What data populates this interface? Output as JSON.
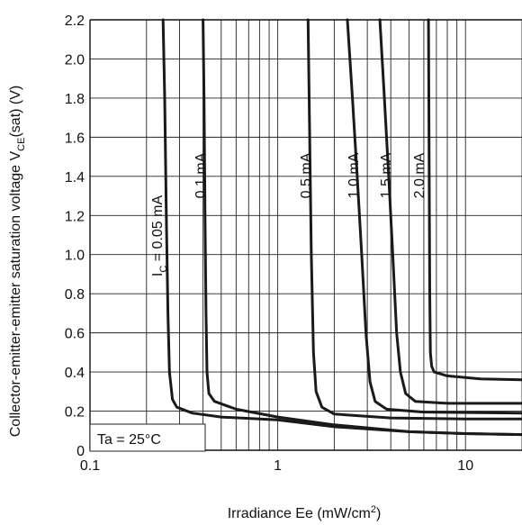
{
  "chart_data": {
    "type": "line",
    "xlabel": "Irradiance Ee (mW/cm",
    "xlabel_sup": "2",
    "xlabel_tail": ")",
    "ylabel": "Collector-emitter-emitter saturation voltage V",
    "ylabel_sub": "CE",
    "ylabel_tail": "(sat) (V)",
    "x_scale": "log",
    "xlim": [
      0.1,
      20
    ],
    "ylim": [
      0,
      2.2
    ],
    "grid": true,
    "x_ticks": [
      {
        "value": 0.1,
        "label": "0.1"
      },
      {
        "value": 1,
        "label": "1"
      },
      {
        "value": 10,
        "label": "10"
      }
    ],
    "y_ticks": [
      {
        "value": 0,
        "label": "0"
      },
      {
        "value": 0.2,
        "label": "0.2"
      },
      {
        "value": 0.4,
        "label": "0.4"
      },
      {
        "value": 0.6,
        "label": "0.6"
      },
      {
        "value": 0.8,
        "label": "0.8"
      },
      {
        "value": 1.0,
        "label": "1.0"
      },
      {
        "value": 1.2,
        "label": "1.2"
      },
      {
        "value": 1.4,
        "label": "1.4"
      },
      {
        "value": 1.6,
        "label": "1.6"
      },
      {
        "value": 1.8,
        "label": "1.8"
      },
      {
        "value": 2.0,
        "label": "2.0"
      },
      {
        "value": 2.2,
        "label": "2.2"
      }
    ],
    "annotation": "Ta = 25°C",
    "series": [
      {
        "name": "I",
        "name_sub": "C",
        "name_tail": " = 0.05 mA",
        "points": [
          [
            0.245,
            2.2
          ],
          [
            0.25,
            1.8
          ],
          [
            0.255,
            1.2
          ],
          [
            0.26,
            0.7
          ],
          [
            0.265,
            0.4
          ],
          [
            0.275,
            0.26
          ],
          [
            0.29,
            0.22
          ],
          [
            0.35,
            0.19
          ],
          [
            0.5,
            0.17
          ],
          [
            1,
            0.155
          ],
          [
            2,
            0.12
          ],
          [
            5,
            0.095
          ],
          [
            10,
            0.085
          ],
          [
            20,
            0.08
          ]
        ]
      },
      {
        "name": "0.1 mA",
        "points": [
          [
            0.4,
            2.2
          ],
          [
            0.405,
            1.8
          ],
          [
            0.41,
            1.2
          ],
          [
            0.415,
            0.7
          ],
          [
            0.42,
            0.4
          ],
          [
            0.43,
            0.29
          ],
          [
            0.46,
            0.25
          ],
          [
            0.6,
            0.21
          ],
          [
            1,
            0.17
          ],
          [
            2,
            0.13
          ],
          [
            5,
            0.095
          ],
          [
            10,
            0.085
          ],
          [
            20,
            0.08
          ]
        ]
      },
      {
        "name": "0.5 mA",
        "points": [
          [
            1.45,
            2.2
          ],
          [
            1.48,
            1.6
          ],
          [
            1.51,
            1.0
          ],
          [
            1.55,
            0.5
          ],
          [
            1.6,
            0.3
          ],
          [
            1.72,
            0.22
          ],
          [
            2,
            0.185
          ],
          [
            4,
            0.165
          ],
          [
            10,
            0.16
          ],
          [
            20,
            0.16
          ]
        ]
      },
      {
        "name": "1.0 mA",
        "points": [
          [
            2.35,
            2.2
          ],
          [
            2.5,
            1.8
          ],
          [
            2.65,
            1.4
          ],
          [
            2.8,
            1.0
          ],
          [
            2.95,
            0.6
          ],
          [
            3.1,
            0.35
          ],
          [
            3.3,
            0.25
          ],
          [
            3.8,
            0.21
          ],
          [
            6,
            0.195
          ],
          [
            20,
            0.19
          ]
        ]
      },
      {
        "name": "1.5 mA",
        "points": [
          [
            3.5,
            2.2
          ],
          [
            3.7,
            1.8
          ],
          [
            3.9,
            1.4
          ],
          [
            4.1,
            1.0
          ],
          [
            4.3,
            0.6
          ],
          [
            4.5,
            0.4
          ],
          [
            4.8,
            0.29
          ],
          [
            5.4,
            0.25
          ],
          [
            8,
            0.24
          ],
          [
            20,
            0.24
          ]
        ]
      },
      {
        "name": "2.0 mA",
        "points": [
          [
            6.35,
            2.2
          ],
          [
            6.38,
            1.8
          ],
          [
            6.42,
            1.2
          ],
          [
            6.45,
            0.8
          ],
          [
            6.5,
            0.5
          ],
          [
            6.6,
            0.43
          ],
          [
            6.8,
            0.4
          ],
          [
            8,
            0.38
          ],
          [
            12,
            0.365
          ],
          [
            20,
            0.36
          ]
        ]
      }
    ]
  }
}
